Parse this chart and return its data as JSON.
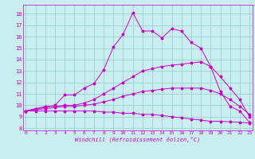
{
  "xlabel": "Windchill (Refroidissement éolien,°C)",
  "background_color": "#c8eef0",
  "grid_color": "#9ecfcf",
  "line_color": "#cc00cc",
  "x_ticks": [
    0,
    1,
    2,
    3,
    4,
    5,
    6,
    7,
    8,
    9,
    10,
    11,
    12,
    13,
    14,
    15,
    16,
    17,
    18,
    19,
    20,
    21,
    22,
    23
  ],
  "y_ticks": [
    8,
    9,
    10,
    11,
    12,
    13,
    14,
    15,
    16,
    17,
    18
  ],
  "xlim": [
    -0.3,
    23.3
  ],
  "ylim": [
    7.8,
    18.8
  ],
  "lines": [
    {
      "x": [
        0,
        1,
        2,
        3,
        4,
        5,
        6,
        7,
        8,
        9,
        10,
        11,
        12,
        13,
        14,
        15,
        16,
        17,
        18,
        19,
        20,
        21,
        22,
        23
      ],
      "y": [
        9.5,
        9.7,
        9.8,
        10.0,
        10.9,
        10.9,
        11.5,
        11.9,
        13.1,
        15.1,
        16.2,
        18.1,
        16.5,
        16.5,
        15.9,
        16.7,
        16.5,
        15.5,
        15.0,
        13.4,
        11.2,
        9.9,
        9.5,
        8.5
      ]
    },
    {
      "x": [
        0,
        1,
        2,
        3,
        4,
        5,
        6,
        7,
        8,
        9,
        10,
        11,
        12,
        13,
        14,
        15,
        16,
        17,
        18,
        19,
        20,
        21,
        22,
        23
      ],
      "y": [
        9.5,
        9.7,
        9.9,
        9.9,
        10.0,
        10.0,
        10.2,
        10.5,
        11.0,
        11.5,
        12.0,
        12.5,
        13.0,
        13.2,
        13.4,
        13.5,
        13.6,
        13.7,
        13.8,
        13.4,
        12.5,
        11.5,
        10.5,
        9.0
      ]
    },
    {
      "x": [
        0,
        1,
        2,
        3,
        4,
        5,
        6,
        7,
        8,
        9,
        10,
        11,
        12,
        13,
        14,
        15,
        16,
        17,
        18,
        19,
        20,
        21,
        22,
        23
      ],
      "y": [
        9.5,
        9.6,
        9.7,
        9.8,
        9.9,
        9.9,
        10.0,
        10.1,
        10.3,
        10.5,
        10.8,
        11.0,
        11.2,
        11.3,
        11.4,
        11.5,
        11.5,
        11.5,
        11.5,
        11.3,
        11.0,
        10.5,
        9.9,
        9.2
      ]
    },
    {
      "x": [
        0,
        1,
        2,
        3,
        4,
        5,
        6,
        7,
        8,
        9,
        10,
        11,
        12,
        13,
        14,
        15,
        16,
        17,
        18,
        19,
        20,
        21,
        22,
        23
      ],
      "y": [
        9.5,
        9.5,
        9.5,
        9.5,
        9.5,
        9.5,
        9.5,
        9.5,
        9.4,
        9.4,
        9.3,
        9.3,
        9.2,
        9.2,
        9.1,
        9.0,
        8.9,
        8.8,
        8.7,
        8.6,
        8.6,
        8.55,
        8.5,
        8.45
      ]
    }
  ]
}
